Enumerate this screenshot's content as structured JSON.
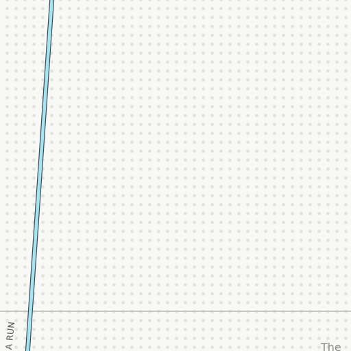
{
  "map": {
    "road_label": "A RUN",
    "place_label": "The",
    "colors": {
      "background": "#f8f8f6",
      "dot_pattern": "#e2e2dc",
      "road_fill": "#a6e4f2",
      "road_casing": "#3a4a54",
      "boundary_line": "#c8c8c8"
    }
  }
}
